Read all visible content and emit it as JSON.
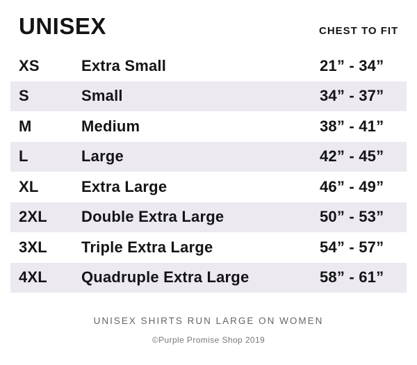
{
  "header": {
    "title": "UNISEX",
    "fit_column_label": "CHEST TO FIT"
  },
  "chart_data": {
    "type": "table",
    "title": "UNISEX",
    "columns": [
      "size_code",
      "size_name",
      "chest_to_fit"
    ],
    "rows": [
      {
        "code": "XS",
        "name": "Extra Small",
        "range": "21” - 34”",
        "shaded": false
      },
      {
        "code": "S",
        "name": "Small",
        "range": "34” - 37”",
        "shaded": true
      },
      {
        "code": "M",
        "name": "Medium",
        "range": "38” - 41”",
        "shaded": false
      },
      {
        "code": "L",
        "name": "Large",
        "range": "42” - 45”",
        "shaded": true
      },
      {
        "code": "XL",
        "name": "Extra Large",
        "range": "46” - 49”",
        "shaded": false
      },
      {
        "code": "2XL",
        "name": "Double Extra Large",
        "range": "50” - 53”",
        "shaded": true
      },
      {
        "code": "3XL",
        "name": "Triple Extra Large",
        "range": "54” - 57”",
        "shaded": false
      },
      {
        "code": "4XL",
        "name": "Quadruple Extra Large",
        "range": "58” - 61”",
        "shaded": true
      }
    ]
  },
  "footer": {
    "note": "UNISEX SHIRTS RUN LARGE ON WOMEN",
    "copyright": "©Purple Promise Shop 2019"
  },
  "colors": {
    "row_shade": "#EDE9F1",
    "text": "#141416",
    "footer_note_text": "#65656A",
    "copyright_text": "#78787C"
  }
}
